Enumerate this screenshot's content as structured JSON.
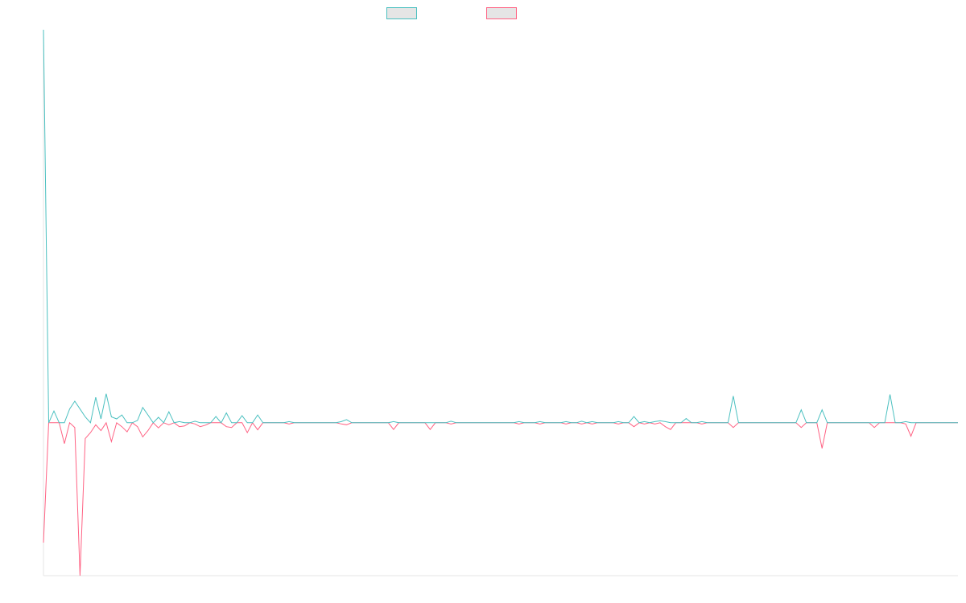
{
  "chart_data": {
    "type": "line",
    "title": "",
    "xlabel": "",
    "ylabel": "",
    "ylim": [
      -0.389,
      1.0
    ],
    "grid": false,
    "legend_position": "top",
    "series": [
      {
        "color": "#4bc0c0",
        "legend_label": "",
        "values": [
          1,
          0,
          0.03,
          0,
          0,
          0.035,
          0.055,
          0.035,
          0.015,
          0,
          0.065,
          0.01,
          0.074,
          0.015,
          0.01,
          0.02,
          0,
          0,
          0.006,
          0.039,
          0.02,
          0,
          0.014,
          0,
          0.028,
          0,
          0.003,
          0,
          0,
          0.004,
          0,
          0,
          0,
          0.016,
          0,
          0.025,
          0,
          0,
          0.018,
          0,
          0,
          0.02,
          0,
          0,
          0,
          0,
          0,
          0.003,
          0,
          0,
          0,
          0,
          0,
          0,
          0,
          0,
          0,
          0.003,
          0.008,
          0,
          0,
          0,
          0,
          0,
          0,
          0,
          0,
          0.003,
          0,
          0,
          0,
          0,
          0,
          0,
          0,
          0,
          0,
          0,
          0.004,
          0,
          0,
          0,
          0,
          0,
          0,
          0,
          0,
          0,
          0,
          0,
          0,
          0.003,
          0,
          0,
          0,
          0.003,
          0,
          0,
          0,
          0,
          0.003,
          0,
          0,
          0.004,
          0,
          0.003,
          0,
          0,
          0,
          0,
          0.003,
          0,
          0,
          0.016,
          0,
          0.003,
          0,
          0.003,
          0.005,
          0.003,
          0,
          0,
          0,
          0.011,
          0,
          0,
          0.003,
          0,
          0,
          0,
          0,
          0,
          0.068,
          0,
          0,
          0,
          0,
          0,
          0,
          0,
          0,
          0,
          0,
          0,
          0,
          0.033,
          0,
          0,
          0,
          0.033,
          0,
          0,
          0,
          0,
          0,
          0,
          0,
          0,
          0,
          0,
          0,
          0,
          0.072,
          0,
          0,
          0.003,
          0,
          0,
          0,
          0,
          0,
          0,
          0,
          0,
          0,
          0
        ]
      },
      {
        "color": "#ff6384",
        "legend_label": "",
        "values": [
          -0.305,
          0,
          0,
          0,
          -0.053,
          0,
          -0.012,
          -0.389,
          -0.04,
          -0.025,
          -0.005,
          -0.02,
          0,
          -0.048,
          0,
          -0.01,
          -0.023,
          0,
          -0.01,
          -0.036,
          -0.02,
          0,
          -0.013,
          0,
          -0.005,
          0,
          -0.01,
          -0.008,
          0,
          -0.003,
          -0.01,
          -0.006,
          0,
          0,
          0,
          -0.01,
          -0.012,
          0,
          0,
          -0.025,
          0,
          -0.018,
          0,
          0,
          0,
          0,
          0,
          -0.003,
          0,
          0,
          0,
          0,
          0,
          0,
          0,
          0,
          0,
          -0.003,
          -0.005,
          0,
          0,
          0,
          0,
          0,
          0,
          0,
          0,
          -0.017,
          0,
          0,
          0,
          0,
          0,
          0,
          -0.017,
          0,
          0,
          0,
          -0.003,
          0,
          0,
          0,
          0,
          0,
          0,
          0,
          0,
          0,
          0,
          0,
          0,
          -0.003,
          0,
          0,
          0,
          -0.003,
          0,
          0,
          0,
          0,
          -0.003,
          0,
          0,
          -0.003,
          0,
          -0.003,
          0,
          0,
          0,
          0,
          -0.003,
          0,
          0,
          -0.01,
          0,
          -0.003,
          0,
          -0.003,
          0,
          -0.01,
          -0.017,
          0,
          0,
          0,
          0,
          0,
          -0.003,
          0,
          0,
          0,
          0,
          0,
          -0.012,
          0,
          0,
          0,
          0,
          0,
          0,
          0,
          0,
          0,
          0,
          0,
          0,
          -0.012,
          0,
          0,
          0,
          -0.065,
          0,
          0,
          0,
          0,
          0,
          0,
          0,
          0,
          0,
          -0.012,
          0,
          0,
          0,
          0,
          0,
          -0.003,
          -0.034,
          0,
          0,
          0,
          0,
          0,
          0,
          0,
          0,
          0
        ]
      }
    ]
  }
}
